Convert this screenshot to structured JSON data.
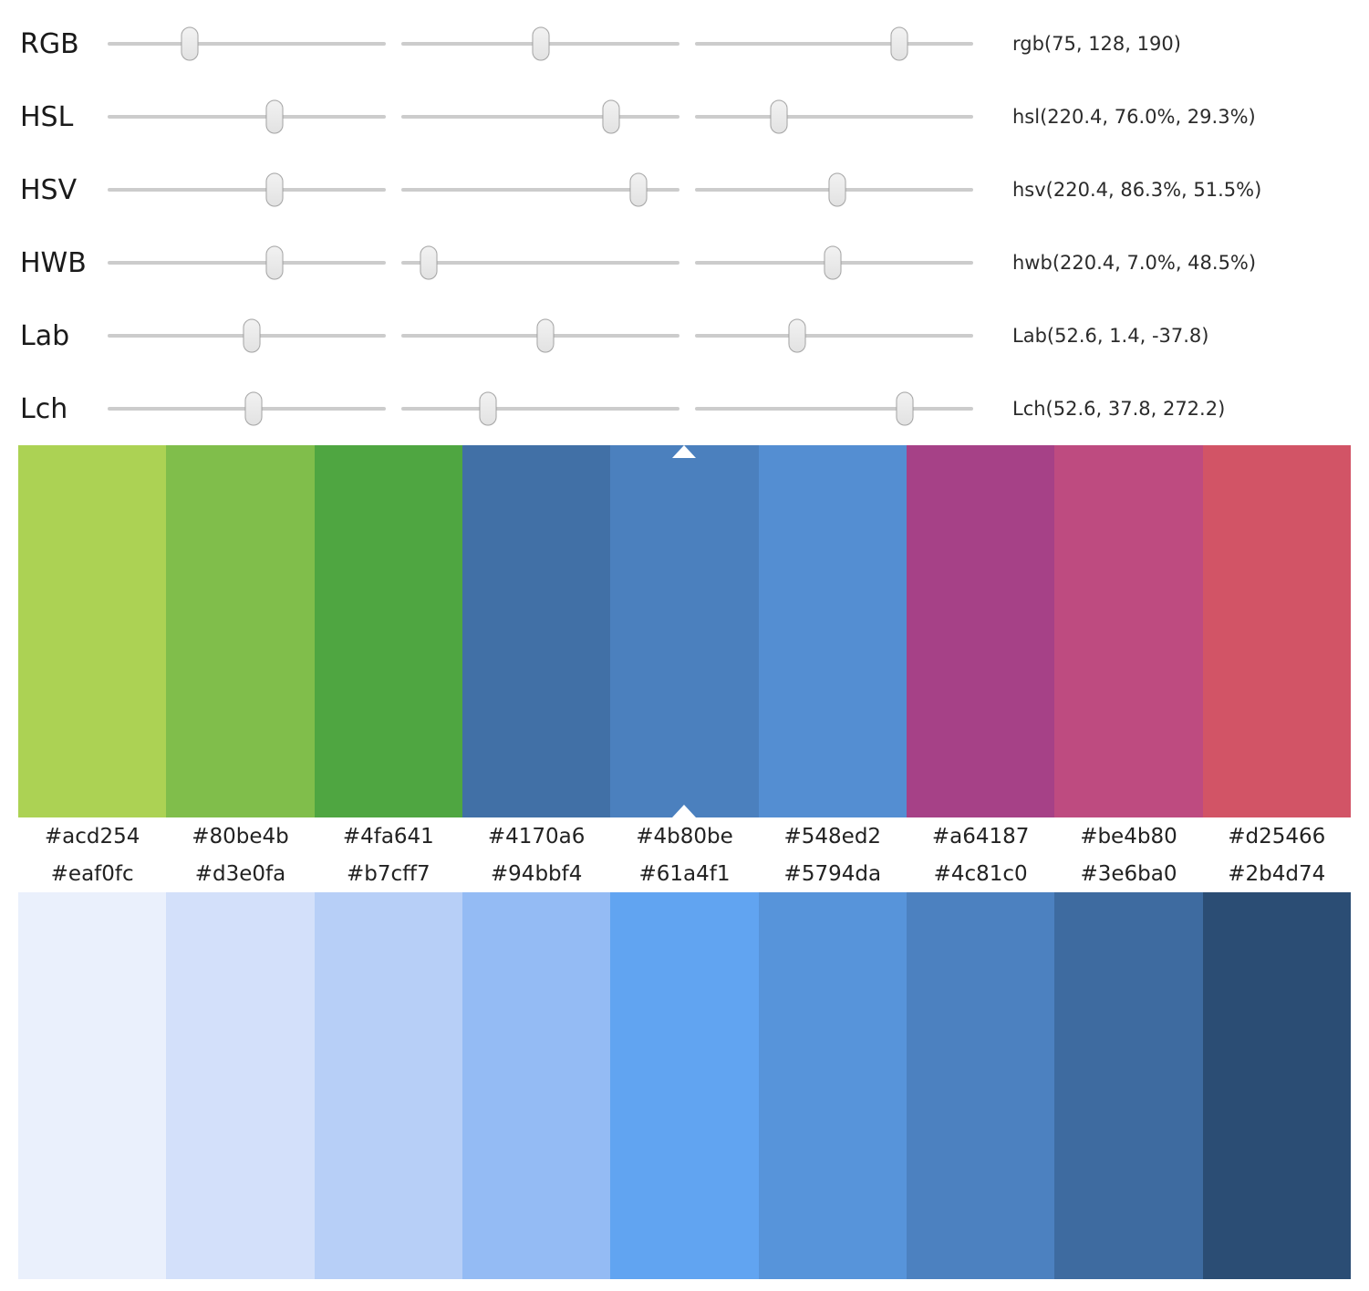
{
  "sliders": [
    {
      "label": "RGB",
      "value": "rgb(75, 128, 190)",
      "positions": [
        29.5,
        50.2,
        73.5
      ]
    },
    {
      "label": "HSL",
      "value": "hsl(220.4, 76.0%, 29.3%)",
      "positions": [
        60.0,
        75.4,
        30.2
      ]
    },
    {
      "label": "HSV",
      "value": "hsv(220.4, 86.3%, 51.5%)",
      "positions": [
        60.0,
        85.2,
        51.1
      ]
    },
    {
      "label": "HWB",
      "value": "hwb(220.4, 7.0%, 48.5%)",
      "positions": [
        60.0,
        9.8,
        49.5
      ]
    },
    {
      "label": "Lab",
      "value": "Lab(52.6, 1.4, -37.8)",
      "positions": [
        51.8,
        51.8,
        36.7
      ]
    },
    {
      "label": "Lch",
      "value": "Lch(52.6, 37.8, 272.2)",
      "positions": [
        52.5,
        31.1,
        75.4
      ]
    }
  ],
  "hue_palette": {
    "selected_index": 4,
    "swatches": [
      {
        "hex": "#acd254"
      },
      {
        "hex": "#80be4b"
      },
      {
        "hex": "#4fa641"
      },
      {
        "hex": "#4170a6"
      },
      {
        "hex": "#4b80be"
      },
      {
        "hex": "#548ed2"
      },
      {
        "hex": "#a64187"
      },
      {
        "hex": "#be4b80"
      },
      {
        "hex": "#d25466"
      }
    ]
  },
  "shade_palette": {
    "swatches": [
      {
        "hex": "#eaf0fc"
      },
      {
        "hex": "#d3e0fa"
      },
      {
        "hex": "#b7cff7"
      },
      {
        "hex": "#94bbf4"
      },
      {
        "hex": "#61a4f1"
      },
      {
        "hex": "#5794da"
      },
      {
        "hex": "#4c81c0"
      },
      {
        "hex": "#3e6ba0"
      },
      {
        "hex": "#2b4d74"
      }
    ]
  }
}
